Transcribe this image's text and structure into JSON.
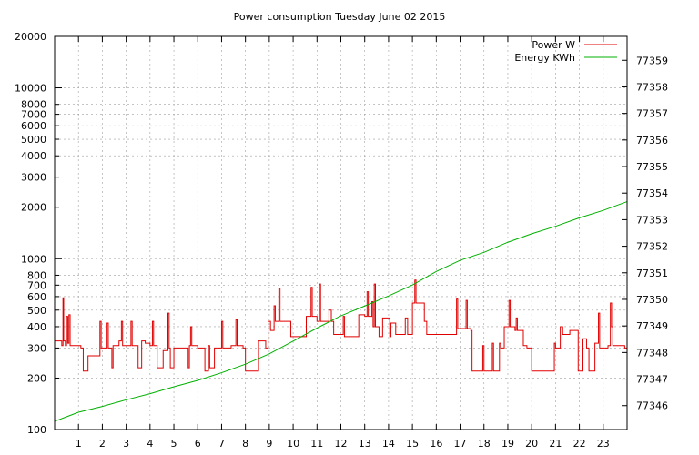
{
  "colors": {
    "power": "#e00000",
    "energy": "#00b000",
    "grid": "#a0a0a0",
    "axis": "#000000"
  },
  "chart_data": {
    "type": "line",
    "title": "Power consumption Tuesday June 02 2015",
    "xlabel": "",
    "ylabel": "",
    "grid": true,
    "legend_position": "top-right",
    "x_range": [
      0,
      24
    ],
    "x_ticks": [
      {
        "value": 1,
        "label": "1"
      },
      {
        "value": 2,
        "label": "2"
      },
      {
        "value": 3,
        "label": "3"
      },
      {
        "value": 4,
        "label": "4"
      },
      {
        "value": 5,
        "label": "5"
      },
      {
        "value": 6,
        "label": "6"
      },
      {
        "value": 7,
        "label": "7"
      },
      {
        "value": 8,
        "label": "8"
      },
      {
        "value": 9,
        "label": "9"
      },
      {
        "value": 10,
        "label": "10"
      },
      {
        "value": 11,
        "label": "11"
      },
      {
        "value": 12,
        "label": "12"
      },
      {
        "value": 13,
        "label": "13"
      },
      {
        "value": 14,
        "label": "14"
      },
      {
        "value": 15,
        "label": "15"
      },
      {
        "value": 16,
        "label": "16"
      },
      {
        "value": 17,
        "label": "17"
      },
      {
        "value": 18,
        "label": "18"
      },
      {
        "value": 19,
        "label": "19"
      },
      {
        "value": 20,
        "label": "20"
      },
      {
        "value": 21,
        "label": "21"
      },
      {
        "value": 22,
        "label": "22"
      },
      {
        "value": 23,
        "label": "23"
      }
    ],
    "y_left": {
      "scale": "log",
      "range": [
        100,
        20000
      ],
      "ticks": [
        {
          "value": 100,
          "label": "100",
          "major": true
        },
        {
          "value": 200,
          "label": "200",
          "major": false
        },
        {
          "value": 300,
          "label": "300",
          "major": false
        },
        {
          "value": 400,
          "label": "400",
          "major": false
        },
        {
          "value": 500,
          "label": "500",
          "major": false
        },
        {
          "value": 600,
          "label": "600",
          "major": false
        },
        {
          "value": 700,
          "label": "700",
          "major": false
        },
        {
          "value": 800,
          "label": "800",
          "major": false
        },
        {
          "value": 1000,
          "label": "1000",
          "major": true
        },
        {
          "value": 2000,
          "label": "2000",
          "major": false
        },
        {
          "value": 3000,
          "label": "3000",
          "major": false
        },
        {
          "value": 4000,
          "label": "4000",
          "major": false
        },
        {
          "value": 5000,
          "label": "5000",
          "major": false
        },
        {
          "value": 6000,
          "label": "6000",
          "major": false
        },
        {
          "value": 7000,
          "label": "7000",
          "major": false
        },
        {
          "value": 8000,
          "label": "8000",
          "major": false
        },
        {
          "value": 10000,
          "label": "10000",
          "major": true
        },
        {
          "value": 20000,
          "label": "20000",
          "major": false
        }
      ]
    },
    "y_right": {
      "scale": "linear",
      "range": [
        77345.1,
        77359.9
      ],
      "ticks": [
        {
          "value": 77346,
          "label": "77346"
        },
        {
          "value": 77347,
          "label": "77347"
        },
        {
          "value": 77348,
          "label": "77348"
        },
        {
          "value": 77349,
          "label": "77349"
        },
        {
          "value": 77350,
          "label": "77350"
        },
        {
          "value": 77351,
          "label": "77351"
        },
        {
          "value": 77352,
          "label": "77352"
        },
        {
          "value": 77353,
          "label": "77353"
        },
        {
          "value": 77354,
          "label": "77354"
        },
        {
          "value": 77355,
          "label": "77355"
        },
        {
          "value": 77356,
          "label": "77356"
        },
        {
          "value": 77357,
          "label": "77357"
        },
        {
          "value": 77358,
          "label": "77358"
        },
        {
          "value": 77359,
          "label": "77359"
        }
      ]
    },
    "series": [
      {
        "name": "Power W",
        "axis": "left",
        "step": true,
        "points": [
          [
            0.0,
            330
          ],
          [
            0.3,
            310
          ],
          [
            0.35,
            590
          ],
          [
            0.38,
            330
          ],
          [
            0.45,
            310
          ],
          [
            0.5,
            460
          ],
          [
            0.55,
            320
          ],
          [
            0.6,
            470
          ],
          [
            0.65,
            310
          ],
          [
            0.9,
            310
          ],
          [
            1.1,
            300
          ],
          [
            1.2,
            220
          ],
          [
            1.4,
            270
          ],
          [
            1.8,
            270
          ],
          [
            1.9,
            430
          ],
          [
            1.95,
            300
          ],
          [
            2.1,
            300
          ],
          [
            2.2,
            420
          ],
          [
            2.25,
            300
          ],
          [
            2.4,
            230
          ],
          [
            2.45,
            310
          ],
          [
            2.7,
            330
          ],
          [
            2.8,
            430
          ],
          [
            2.85,
            310
          ],
          [
            3.0,
            310
          ],
          [
            3.2,
            430
          ],
          [
            3.25,
            310
          ],
          [
            3.4,
            310
          ],
          [
            3.5,
            230
          ],
          [
            3.6,
            230
          ],
          [
            3.65,
            330
          ],
          [
            3.8,
            320
          ],
          [
            4.0,
            310
          ],
          [
            4.1,
            430
          ],
          [
            4.15,
            310
          ],
          [
            4.3,
            230
          ],
          [
            4.5,
            230
          ],
          [
            4.55,
            290
          ],
          [
            4.7,
            290
          ],
          [
            4.75,
            480
          ],
          [
            4.8,
            300
          ],
          [
            4.85,
            230
          ],
          [
            4.9,
            230
          ],
          [
            5.0,
            300
          ],
          [
            5.5,
            300
          ],
          [
            5.6,
            230
          ],
          [
            5.65,
            310
          ],
          [
            5.7,
            400
          ],
          [
            5.75,
            310
          ],
          [
            6.0,
            300
          ],
          [
            6.3,
            220
          ],
          [
            6.4,
            220
          ],
          [
            6.45,
            310
          ],
          [
            6.5,
            230
          ],
          [
            6.7,
            300
          ],
          [
            6.8,
            300
          ],
          [
            7.0,
            430
          ],
          [
            7.05,
            300
          ],
          [
            7.4,
            310
          ],
          [
            7.6,
            440
          ],
          [
            7.65,
            310
          ],
          [
            7.9,
            300
          ],
          [
            8.0,
            220
          ],
          [
            8.5,
            220
          ],
          [
            8.55,
            330
          ],
          [
            8.8,
            330
          ],
          [
            8.85,
            300
          ],
          [
            8.95,
            430
          ],
          [
            9.05,
            380
          ],
          [
            9.2,
            530
          ],
          [
            9.25,
            430
          ],
          [
            9.4,
            670
          ],
          [
            9.45,
            430
          ],
          [
            9.8,
            430
          ],
          [
            9.9,
            350
          ],
          [
            10.5,
            350
          ],
          [
            10.55,
            460
          ],
          [
            10.7,
            460
          ],
          [
            10.75,
            680
          ],
          [
            10.8,
            460
          ],
          [
            11.0,
            430
          ],
          [
            11.1,
            710
          ],
          [
            11.15,
            430
          ],
          [
            11.4,
            430
          ],
          [
            11.5,
            500
          ],
          [
            11.6,
            430
          ],
          [
            11.7,
            360
          ],
          [
            12.0,
            360
          ],
          [
            12.1,
            460
          ],
          [
            12.15,
            350
          ],
          [
            12.7,
            350
          ],
          [
            12.75,
            470
          ],
          [
            13.0,
            460
          ],
          [
            13.1,
            640
          ],
          [
            13.15,
            460
          ],
          [
            13.3,
            560
          ],
          [
            13.35,
            400
          ],
          [
            13.4,
            710
          ],
          [
            13.45,
            400
          ],
          [
            13.6,
            350
          ],
          [
            13.7,
            350
          ],
          [
            13.75,
            450
          ],
          [
            14.0,
            450
          ],
          [
            14.05,
            350
          ],
          [
            14.1,
            420
          ],
          [
            14.3,
            360
          ],
          [
            14.6,
            360
          ],
          [
            14.7,
            450
          ],
          [
            14.8,
            360
          ],
          [
            15.0,
            550
          ],
          [
            15.1,
            750
          ],
          [
            15.15,
            550
          ],
          [
            15.5,
            430
          ],
          [
            15.6,
            360
          ],
          [
            16.8,
            360
          ],
          [
            16.85,
            580
          ],
          [
            16.9,
            390
          ],
          [
            17.2,
            390
          ],
          [
            17.25,
            570
          ],
          [
            17.3,
            390
          ],
          [
            17.45,
            380
          ],
          [
            17.5,
            220
          ],
          [
            17.9,
            220
          ],
          [
            17.95,
            310
          ],
          [
            18.0,
            220
          ],
          [
            18.3,
            220
          ],
          [
            18.35,
            320
          ],
          [
            18.4,
            220
          ],
          [
            18.6,
            220
          ],
          [
            18.65,
            320
          ],
          [
            18.7,
            300
          ],
          [
            18.8,
            300
          ],
          [
            18.85,
            400
          ],
          [
            19.0,
            400
          ],
          [
            19.05,
            570
          ],
          [
            19.1,
            400
          ],
          [
            19.3,
            380
          ],
          [
            19.35,
            450
          ],
          [
            19.4,
            380
          ],
          [
            19.6,
            380
          ],
          [
            19.65,
            310
          ],
          [
            19.8,
            300
          ],
          [
            20.0,
            220
          ],
          [
            20.9,
            220
          ],
          [
            20.95,
            320
          ],
          [
            21.0,
            300
          ],
          [
            21.2,
            400
          ],
          [
            21.3,
            360
          ],
          [
            21.5,
            360
          ],
          [
            21.6,
            380
          ],
          [
            21.9,
            380
          ],
          [
            21.95,
            220
          ],
          [
            22.1,
            220
          ],
          [
            22.15,
            340
          ],
          [
            22.3,
            300
          ],
          [
            22.4,
            220
          ],
          [
            22.6,
            220
          ],
          [
            22.65,
            320
          ],
          [
            22.8,
            480
          ],
          [
            22.85,
            300
          ],
          [
            23.0,
            300
          ],
          [
            23.2,
            310
          ],
          [
            23.3,
            550
          ],
          [
            23.35,
            400
          ],
          [
            23.4,
            310
          ],
          [
            23.8,
            310
          ],
          [
            23.9,
            300
          ],
          [
            24.0,
            300
          ]
        ]
      },
      {
        "name": "Energy KWh",
        "axis": "right",
        "step": false,
        "points": [
          [
            0.0,
            77345.41
          ],
          [
            0.5,
            77345.58
          ],
          [
            1.0,
            77345.75
          ],
          [
            2.0,
            77345.97
          ],
          [
            3.0,
            77346.22
          ],
          [
            4.0,
            77346.45
          ],
          [
            5.0,
            77346.71
          ],
          [
            6.0,
            77346.95
          ],
          [
            7.0,
            77347.24
          ],
          [
            8.0,
            77347.56
          ],
          [
            9.0,
            77347.95
          ],
          [
            10.0,
            77348.43
          ],
          [
            11.0,
            77348.92
          ],
          [
            12.0,
            77349.38
          ],
          [
            13.0,
            77349.75
          ],
          [
            14.0,
            77350.13
          ],
          [
            15.0,
            77350.54
          ],
          [
            16.0,
            77351.05
          ],
          [
            17.0,
            77351.47
          ],
          [
            18.0,
            77351.77
          ],
          [
            19.0,
            77352.15
          ],
          [
            20.0,
            77352.47
          ],
          [
            21.0,
            77352.75
          ],
          [
            22.0,
            77353.07
          ],
          [
            23.0,
            77353.35
          ],
          [
            24.0,
            77353.68
          ]
        ]
      }
    ]
  }
}
